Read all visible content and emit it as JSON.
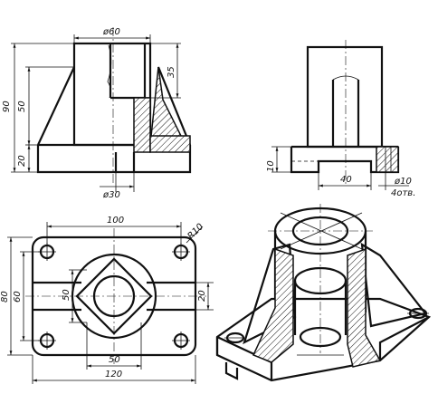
{
  "views": {
    "front": {
      "dims": {
        "top_diameter": "ø60",
        "overall_height": "90",
        "mid_height": "50",
        "bore_depth": "35",
        "base_height": "20",
        "bottom_diameter": "ø30"
      }
    },
    "side": {
      "dims": {
        "base_height": "10",
        "slot_width": "40",
        "hole_diameter": "ø10",
        "hole_count": "4отв."
      }
    },
    "top": {
      "dims": {
        "hole_spacing": "100",
        "corner_radius": "R10",
        "overall_depth": "80",
        "hole_spacing_vertical": "60",
        "square_size": "50",
        "slot_width": "20",
        "square_width_bottom": "50",
        "overall_width": "120"
      }
    }
  }
}
